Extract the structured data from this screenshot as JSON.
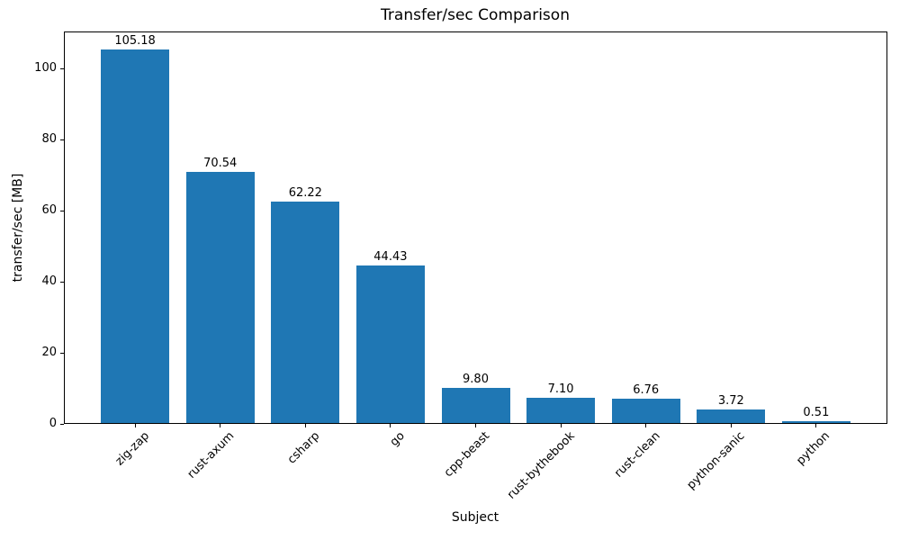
{
  "chart_data": {
    "type": "bar",
    "title": "Transfer/sec Comparison",
    "xlabel": "Subject",
    "ylabel": "transfer/sec [MB]",
    "categories": [
      "zig-zap",
      "rust-axum",
      "csharp",
      "go",
      "cpp-beast",
      "rust-bythebook",
      "rust-clean",
      "python-sanic",
      "python"
    ],
    "values": [
      105.18,
      70.54,
      62.22,
      44.43,
      9.8,
      7.1,
      6.76,
      3.72,
      0.51
    ],
    "value_labels": [
      "105.18",
      "70.54",
      "62.22",
      "44.43",
      "9.80",
      "7.10",
      "6.76",
      "3.72",
      "0.51"
    ],
    "yticks": [
      0,
      20,
      40,
      60,
      80,
      100
    ],
    "ylim": [
      0,
      110.4
    ],
    "grid": false,
    "legend": false,
    "bar_color": "#1f77b4",
    "text_color": "#000000",
    "frame_color": "#000000"
  }
}
